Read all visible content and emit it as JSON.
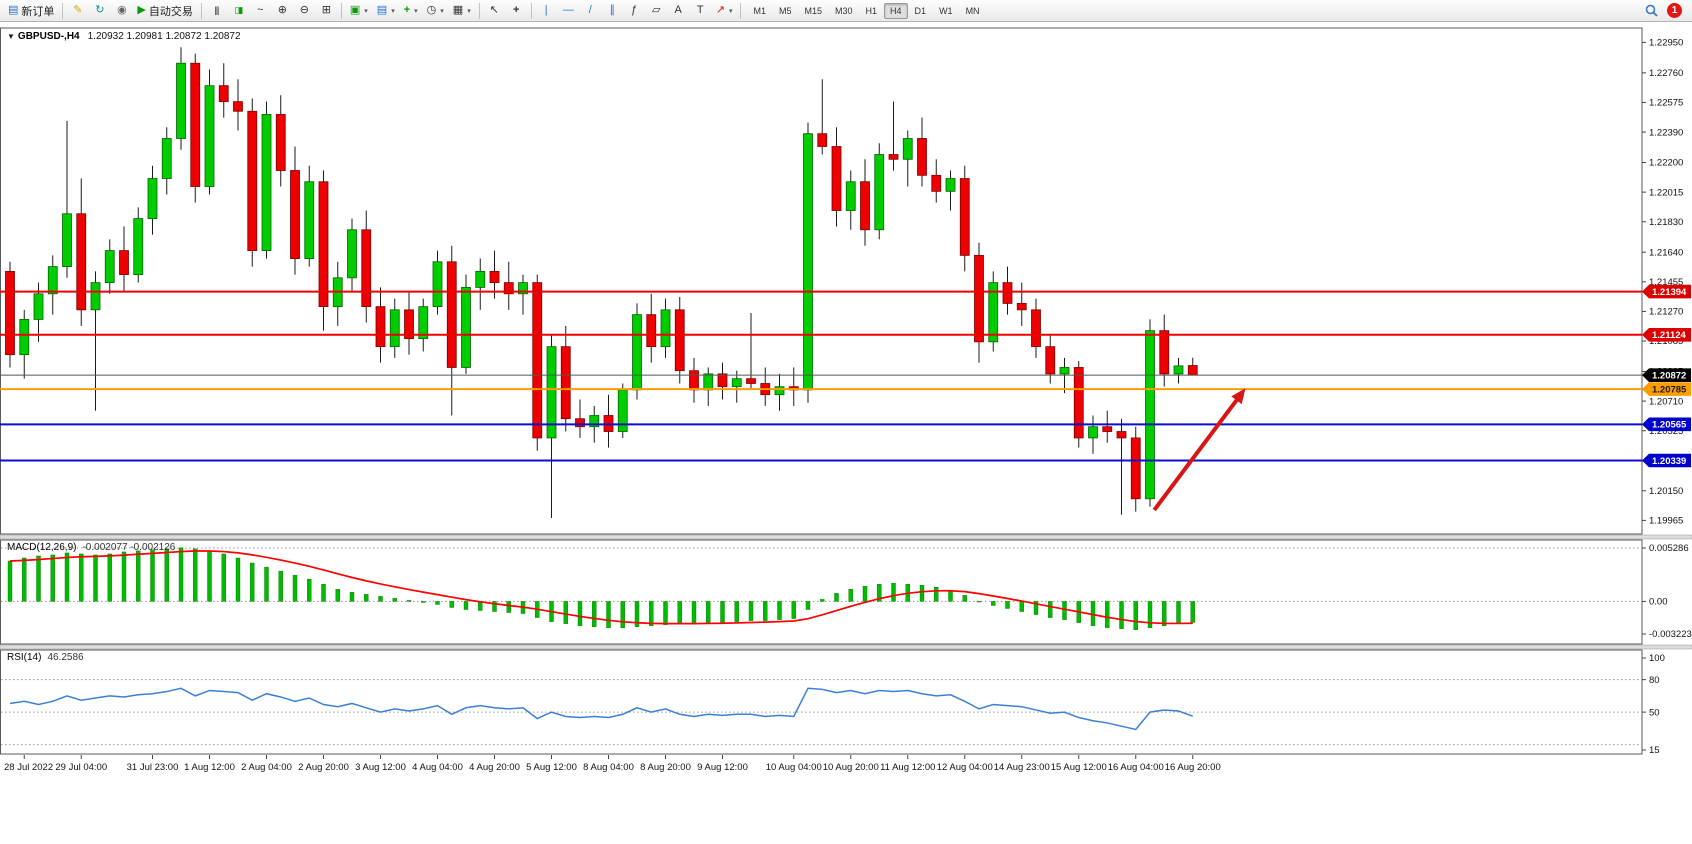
{
  "toolbar": {
    "new_order_label": "新订单",
    "auto_trading_label": "自动交易",
    "notification_count": "1",
    "timeframes": [
      {
        "label": "M1",
        "active": false
      },
      {
        "label": "M5",
        "active": false
      },
      {
        "label": "M15",
        "active": false
      },
      {
        "label": "M30",
        "active": false
      },
      {
        "label": "H1",
        "active": false
      },
      {
        "label": "H4",
        "active": true
      },
      {
        "label": "D1",
        "active": false
      },
      {
        "label": "W1",
        "active": false
      },
      {
        "label": "MN",
        "active": false
      }
    ]
  },
  "icons": {
    "new_order": "▤",
    "metaeditor": "✎",
    "refresh": "↻",
    "mql5": "◉",
    "autotrading": "▶",
    "chart_bars": "|||",
    "chart_candles": "▯▮",
    "chart_line": "~",
    "zoom_in": "⊕",
    "zoom_out": "⊖",
    "tile_windows": "⊞",
    "new_chart": "▣",
    "profiles": "▤",
    "indicators": "+",
    "periods": "◷",
    "templates": "▦",
    "cursor": "↖",
    "crosshair": "+",
    "vline": "|",
    "hline": "—",
    "trendline": "/",
    "channel": "∥",
    "fibonacci": "ƒ",
    "shapes": "▱",
    "text": "A",
    "label": "T",
    "arrows": "↗",
    "dropdown": "▾",
    "symbol_collapse": "▼"
  },
  "chart_data": [
    {
      "type": "candlestick",
      "title": "GBPUSD-,H4",
      "quote_line": "1.20932 1.20981 1.20872 1.20872",
      "ylim": [
        1.1988,
        1.2304
      ],
      "y_ticks": [
        1.2295,
        1.2276,
        1.22575,
        1.2239,
        1.222,
        1.22015,
        1.2183,
        1.2164,
        1.21455,
        1.2127,
        1.21085,
        1.20895,
        1.2071,
        1.20525,
        1.20335,
        1.2015,
        1.19965
      ],
      "x_labels": [
        {
          "i": 1,
          "t": "28 Jul 2022"
        },
        {
          "i": 5,
          "t": "29 Jul 04:00"
        },
        {
          "i": 10,
          "t": "31 Jul 23:00"
        },
        {
          "i": 14,
          "t": "1 Aug 12:00"
        },
        {
          "i": 18,
          "t": "2 Aug 04:00"
        },
        {
          "i": 22,
          "t": "2 Aug 20:00"
        },
        {
          "i": 26,
          "t": "3 Aug 12:00"
        },
        {
          "i": 30,
          "t": "4 Aug 04:00"
        },
        {
          "i": 34,
          "t": "4 Aug 20:00"
        },
        {
          "i": 38,
          "t": "5 Aug 12:00"
        },
        {
          "i": 42,
          "t": "8 Aug 04:00"
        },
        {
          "i": 46,
          "t": "8 Aug 20:00"
        },
        {
          "i": 50,
          "t": "9 Aug 12:00"
        },
        {
          "i": 55,
          "t": "10 Aug 04:00"
        },
        {
          "i": 59,
          "t": "10 Aug 20:00"
        },
        {
          "i": 63,
          "t": "11 Aug 12:00"
        },
        {
          "i": 67,
          "t": "12 Aug 04:00"
        },
        {
          "i": 71,
          "t": "14 Aug 23:00"
        },
        {
          "i": 75,
          "t": "15 Aug 12:00"
        },
        {
          "i": 79,
          "t": "16 Aug 04:00"
        },
        {
          "i": 83,
          "t": "16 Aug 20:00"
        }
      ],
      "ohlc": [
        [
          1.2152,
          1.2158,
          1.2092,
          1.21
        ],
        [
          1.21,
          1.2128,
          1.2085,
          1.2122
        ],
        [
          1.2122,
          1.2145,
          1.2108,
          1.2138
        ],
        [
          1.2138,
          1.2162,
          1.2125,
          1.2155
        ],
        [
          1.2155,
          1.2246,
          1.2148,
          1.2188
        ],
        [
          1.2188,
          1.221,
          1.2118,
          1.2128
        ],
        [
          1.2128,
          1.2152,
          1.2065,
          1.2145
        ],
        [
          1.2145,
          1.2172,
          1.2138,
          1.2165
        ],
        [
          1.2165,
          1.218,
          1.214,
          1.215
        ],
        [
          1.215,
          1.2192,
          1.2145,
          1.2185
        ],
        [
          1.2185,
          1.2218,
          1.2175,
          1.221
        ],
        [
          1.221,
          1.2242,
          1.22,
          1.2235
        ],
        [
          1.2235,
          1.2292,
          1.2228,
          1.2282
        ],
        [
          1.2282,
          1.2288,
          1.2195,
          1.2205
        ],
        [
          1.2205,
          1.2278,
          1.22,
          1.2268
        ],
        [
          1.2268,
          1.2282,
          1.2248,
          1.2258
        ],
        [
          1.2258,
          1.2272,
          1.224,
          1.2252
        ],
        [
          1.2252,
          1.226,
          1.2155,
          1.2165
        ],
        [
          1.2165,
          1.2258,
          1.216,
          1.225
        ],
        [
          1.225,
          1.2262,
          1.2205,
          1.2215
        ],
        [
          1.2215,
          1.223,
          1.215,
          1.216
        ],
        [
          1.216,
          1.2218,
          1.2155,
          1.2208
        ],
        [
          1.2208,
          1.2215,
          1.2115,
          1.213
        ],
        [
          1.213,
          1.2158,
          1.2118,
          1.2148
        ],
        [
          1.2148,
          1.2185,
          1.214,
          1.2178
        ],
        [
          1.2178,
          1.219,
          1.212,
          1.213
        ],
        [
          1.213,
          1.2142,
          1.2095,
          1.2105
        ],
        [
          1.2105,
          1.2135,
          1.2098,
          1.2128
        ],
        [
          1.2128,
          1.214,
          1.21,
          1.211
        ],
        [
          1.211,
          1.2135,
          1.2102,
          1.213
        ],
        [
          1.213,
          1.2165,
          1.2125,
          1.2158
        ],
        [
          1.2158,
          1.2168,
          1.2062,
          1.2092
        ],
        [
          1.2092,
          1.215,
          1.2088,
          1.2142
        ],
        [
          1.2142,
          1.216,
          1.2128,
          1.2152
        ],
        [
          1.2152,
          1.2165,
          1.2135,
          1.2145
        ],
        [
          1.2145,
          1.2158,
          1.2128,
          1.2138
        ],
        [
          1.2138,
          1.215,
          1.2125,
          1.2145
        ],
        [
          1.2145,
          1.215,
          1.204,
          1.2048
        ],
        [
          1.2048,
          1.2112,
          1.1998,
          1.2105
        ],
        [
          1.2105,
          1.2118,
          1.2052,
          1.206
        ],
        [
          1.206,
          1.2072,
          1.2048,
          1.2055
        ],
        [
          1.2055,
          1.2068,
          1.2045,
          1.2062
        ],
        [
          1.2062,
          1.2075,
          1.2042,
          1.2052
        ],
        [
          1.2052,
          1.2082,
          1.2048,
          1.2078
        ],
        [
          1.2078,
          1.2132,
          1.2072,
          1.2125
        ],
        [
          1.2125,
          1.2138,
          1.2095,
          1.2105
        ],
        [
          1.2105,
          1.2135,
          1.2098,
          1.2128
        ],
        [
          1.2128,
          1.2136,
          1.2082,
          1.209
        ],
        [
          1.209,
          1.2098,
          1.207,
          1.2078
        ],
        [
          1.2078,
          1.2092,
          1.2068,
          1.2088
        ],
        [
          1.2088,
          1.2095,
          1.2072,
          1.208
        ],
        [
          1.208,
          1.209,
          1.207,
          1.2085
        ],
        [
          1.2085,
          1.2126,
          1.2078,
          1.2082
        ],
        [
          1.2082,
          1.2092,
          1.2068,
          1.2075
        ],
        [
          1.2075,
          1.2088,
          1.2065,
          1.208
        ],
        [
          1.208,
          1.2092,
          1.2068,
          1.2078
        ],
        [
          1.2078,
          1.2245,
          1.207,
          1.2238
        ],
        [
          1.2238,
          1.2272,
          1.2225,
          1.223
        ],
        [
          1.223,
          1.2242,
          1.218,
          1.219
        ],
        [
          1.219,
          1.2215,
          1.2178,
          1.2208
        ],
        [
          1.2208,
          1.2222,
          1.2168,
          1.2178
        ],
        [
          1.2178,
          1.2232,
          1.2172,
          1.2225
        ],
        [
          1.2225,
          1.2258,
          1.2215,
          1.2222
        ],
        [
          1.2222,
          1.224,
          1.2205,
          1.2235
        ],
        [
          1.2235,
          1.2248,
          1.2205,
          1.2212
        ],
        [
          1.2212,
          1.2222,
          1.2195,
          1.2202
        ],
        [
          1.2202,
          1.2215,
          1.219,
          1.221
        ],
        [
          1.221,
          1.2218,
          1.2152,
          1.2162
        ],
        [
          1.2162,
          1.217,
          1.2095,
          1.2108
        ],
        [
          1.2108,
          1.2152,
          1.2102,
          1.2145
        ],
        [
          1.2145,
          1.2155,
          1.2125,
          1.2132
        ],
        [
          1.2132,
          1.2145,
          1.2118,
          1.2128
        ],
        [
          1.2128,
          1.2135,
          1.2098,
          1.2105
        ],
        [
          1.2105,
          1.2112,
          1.2082,
          1.2088
        ],
        [
          1.2088,
          1.2098,
          1.2076,
          1.2092
        ],
        [
          1.2092,
          1.2096,
          1.2042,
          1.2048
        ],
        [
          1.2048,
          1.2062,
          1.2038,
          1.2055
        ],
        [
          1.2055,
          1.2065,
          1.2045,
          1.2052
        ],
        [
          1.2052,
          1.206,
          1.2,
          1.2048
        ],
        [
          1.2048,
          1.2055,
          1.2002,
          1.201
        ],
        [
          1.201,
          1.2122,
          1.2005,
          1.2115
        ],
        [
          1.2115,
          1.2125,
          1.208,
          1.2088
        ],
        [
          1.2088,
          1.2098,
          1.2082,
          1.2093
        ],
        [
          1.20932,
          1.20981,
          1.20872,
          1.20872
        ]
      ],
      "hlines": [
        {
          "price": 1.21394,
          "color": "#ee0000",
          "width": 2,
          "tag": "1.21394",
          "tag_bg": "#dd0000",
          "tag_fg": "#ffffff"
        },
        {
          "price": 1.21124,
          "color": "#ee0000",
          "width": 2,
          "tag": "1.21124",
          "tag_bg": "#dd0000",
          "tag_fg": "#ffffff"
        },
        {
          "price": 1.20872,
          "color": "#555555",
          "width": 1,
          "tag": "1.20872",
          "tag_bg": "#000000",
          "tag_fg": "#ffffff"
        },
        {
          "price": 1.20785,
          "color": "#ff9c00",
          "width": 2,
          "tag": "1.20785",
          "tag_bg": "#ff9c00",
          "tag_fg": "#1a1a1a"
        },
        {
          "price": 1.20565,
          "color": "#0d0dd0",
          "width": 2,
          "tag": "1.20565",
          "tag_bg": "#0000cd",
          "tag_fg": "#ffffff"
        },
        {
          "price": 1.20339,
          "color": "#0d0dd0",
          "width": 2,
          "tag": "1.20339",
          "tag_bg": "#0000cd",
          "tag_fg": "#ffffff"
        }
      ],
      "arrow": {
        "from_idx": 80.3,
        "from_price": 1.2003,
        "to_idx": 86.7,
        "to_price": 1.2079,
        "color": "#d81414",
        "width": 4
      },
      "colors": {
        "bull": "#00cc00",
        "bull_stroke": "#006600",
        "bear": "#ee0000",
        "bear_stroke": "#7e0000",
        "wick": "#1a1a1a"
      }
    },
    {
      "type": "bar",
      "label": "MACD(12,26,9)",
      "values_label": "-0.002077 -0.002126",
      "ylim": [
        -0.003223,
        0.005286
      ],
      "y_ticks": [
        "0.005286",
        "0.00",
        "-0.003223"
      ],
      "signal_period": 9,
      "values": [
        0.004,
        0.0043,
        0.0045,
        0.0046,
        0.0048,
        0.0047,
        0.0046,
        0.0047,
        0.0049,
        0.005,
        0.0051,
        0.0052,
        0.0053,
        0.0052,
        0.005,
        0.0047,
        0.0043,
        0.0038,
        0.0034,
        0.003,
        0.0026,
        0.0022,
        0.0017,
        0.0012,
        0.0009,
        0.0007,
        0.0005,
        0.0003,
        0.0001,
        -0.0001,
        -0.0003,
        -0.0006,
        -0.0008,
        -0.0009,
        -0.001,
        -0.0011,
        -0.0012,
        -0.0016,
        -0.002,
        -0.0022,
        -0.0024,
        -0.0025,
        -0.0026,
        -0.0026,
        -0.0025,
        -0.0024,
        -0.0023,
        -0.0022,
        -0.0022,
        -0.0021,
        -0.0021,
        -0.002,
        -0.0019,
        -0.0019,
        -0.0018,
        -0.0017,
        -0.0008,
        0.0002,
        0.0008,
        0.0012,
        0.0015,
        0.0017,
        0.0018,
        0.0017,
        0.0016,
        0.0014,
        0.0011,
        0.0006,
        0.0,
        -0.0004,
        -0.0007,
        -0.001,
        -0.0013,
        -0.0016,
        -0.0018,
        -0.0021,
        -0.0024,
        -0.0026,
        -0.0027,
        -0.0028,
        -0.0026,
        -0.0024,
        -0.0022,
        -0.002077
      ],
      "colors": {
        "hist": "#00bb00",
        "hist_stroke": "#007700",
        "signal": "#ff0000"
      }
    },
    {
      "type": "line",
      "label": "RSI(14)",
      "values_label": "46.2586",
      "ylim": [
        15,
        100
      ],
      "y_ticks": [
        "100",
        "80",
        "50",
        "15"
      ],
      "levels": [
        80,
        50,
        20
      ],
      "values": [
        58,
        60,
        57,
        60,
        65,
        61,
        63,
        65,
        64,
        66,
        67,
        69,
        72,
        65,
        70,
        69,
        68,
        61,
        67,
        64,
        60,
        63,
        57,
        55,
        58,
        54,
        50,
        53,
        51,
        53,
        56,
        48,
        54,
        56,
        54,
        53,
        54,
        44,
        50,
        46,
        45,
        46,
        45,
        48,
        54,
        50,
        53,
        48,
        46,
        48,
        47,
        48,
        48,
        46,
        47,
        46,
        72,
        71,
        68,
        70,
        67,
        70,
        69,
        70,
        67,
        65,
        66,
        60,
        53,
        57,
        56,
        55,
        52,
        49,
        50,
        45,
        42,
        40,
        37,
        34,
        50,
        52,
        51,
        46.2586
      ],
      "colors": {
        "line": "#3c7fd6"
      }
    }
  ]
}
